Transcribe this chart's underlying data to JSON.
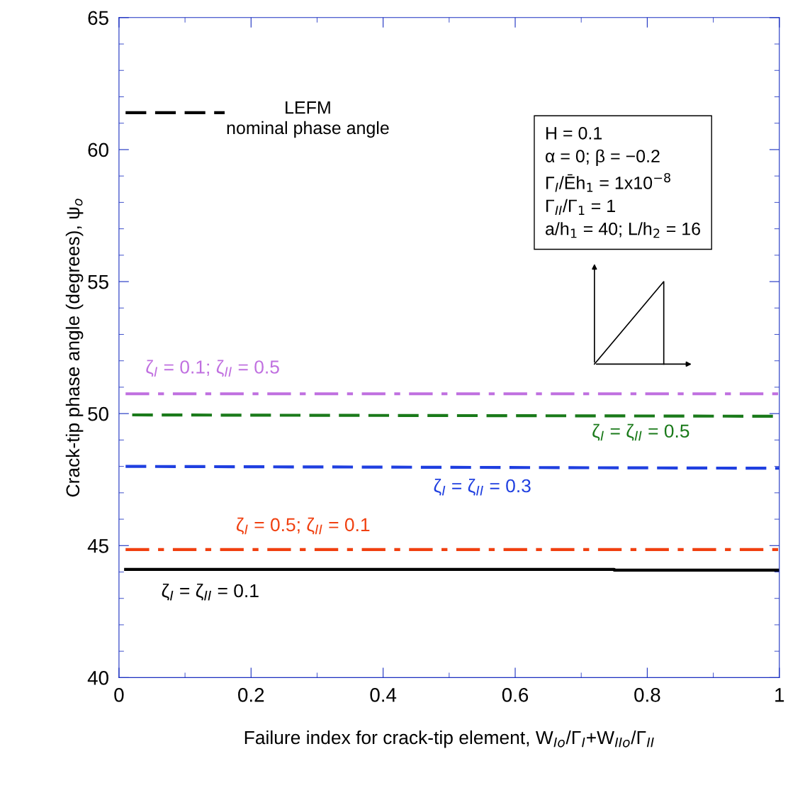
{
  "chart_data": {
    "type": "line",
    "xlabel": "Failure index for crack-tip element, W$_{Io}$/Γ$_{I}$+W$_{IIo}$/Γ$_{II}$",
    "ylabel": "Crack-tip phase angle (degrees), ψ$_{o}$",
    "xlim": [
      0,
      1
    ],
    "xticks": [
      0,
      0.2,
      0.4,
      0.6,
      0.8,
      1
    ],
    "ylim": [
      40,
      65
    ],
    "yticks": [
      40,
      45,
      50,
      55,
      60,
      65
    ],
    "grid": false,
    "marker": "none",
    "series": [
      {
        "name": "ζ$_{I}$ = 0.1; ζ$_{II}$ = 0.5",
        "color": "#c070e0",
        "line_style": "dashdot",
        "x": [
          0.01,
          1
        ],
        "values": [
          50.75,
          50.75
        ]
      },
      {
        "name": "ζ$_{I}$ = ζ$_{II}$ = 0.5",
        "color": "#1a7a1a",
        "line_style": "dashed",
        "x": [
          0.02,
          1
        ],
        "values": [
          49.95,
          49.9
        ]
      },
      {
        "name": "ζ$_{I}$ = ζ$_{II}$ = 0.3",
        "color": "#1f3fe0",
        "line_style": "dashed",
        "x": [
          0.01,
          1
        ],
        "values": [
          48.0,
          47.93
        ]
      },
      {
        "name": "ζ$_{I}$ = 0.5; ζ$_{II}$ = 0.1",
        "color": "#f04010",
        "line_style": "dashdot",
        "x": [
          0.01,
          1
        ],
        "values": [
          44.85,
          44.85
        ]
      },
      {
        "name": "ζ$_{I}$ = ζ$_{II}$ = 0.1",
        "color": "#000000",
        "line_style": "solid",
        "x": [
          0.01,
          0.75,
          0.75,
          1
        ],
        "values": [
          44.1,
          44.1,
          44.07,
          44.07
        ]
      }
    ],
    "annotations": [
      "LEFM\nnominal phase angle",
      "H = 0.1\nα = 0; β = −0.2\nΓ$_{I}$/Ēh$_{1}$ = 1x10$^{−8}$\nΓ$_{II}$/Γ$_{1}$ = 1\na/h$_{1}$ = 40; L/h$_{2}$ = 16"
    ]
  }
}
